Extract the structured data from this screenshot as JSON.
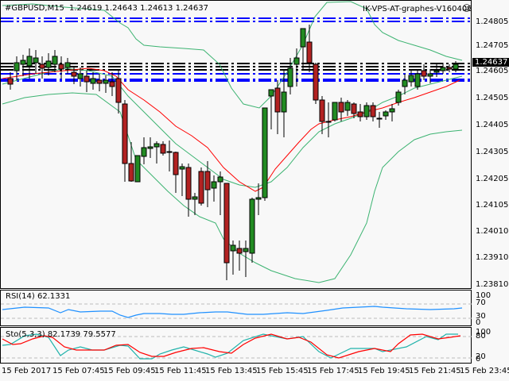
{
  "chart": {
    "symbol_header": "#GBPUSD,M15",
    "ohlc": "1.24619 1.24643 1.24613 1.24637",
    "indicator_name": "IK-VPS-AT-graphes-V160406",
    "status_icon": "smiley-icon",
    "current_price": "1.24637",
    "price_axis": [
      "1.24805",
      "1.24705",
      "1.24605",
      "1.24505",
      "1.24405",
      "1.24305",
      "1.24205",
      "1.24105",
      "1.24010",
      "1.23910",
      "1.23810"
    ],
    "time_axis": [
      "15 Feb 2017",
      "15 Feb 07:45",
      "15 Feb 09:45",
      "15 Feb 11:45",
      "15 Feb 13:45",
      "15 Feb 15:45",
      "15 Feb 17:45",
      "15 Feb 19:45",
      "15 Feb 21:45",
      "15 Feb 23:45"
    ],
    "colors": {
      "bull": "#228b22",
      "bear": "#b22222",
      "ma": "#ff0000",
      "bands": "#3cb371",
      "hlines_blue": "#0000ff",
      "rsi": "#1e90ff",
      "sto_main": "#20b2aa",
      "sto_signal": "#ff0000"
    }
  },
  "rsi": {
    "label": "RSI(14) 62.1331",
    "levels": [
      "100",
      "70",
      "30",
      "0"
    ]
  },
  "stochastic": {
    "label": "Sto(5,3,3) 82.1739 79.5577",
    "levels": [
      "100",
      "80",
      "20",
      "0"
    ]
  }
}
